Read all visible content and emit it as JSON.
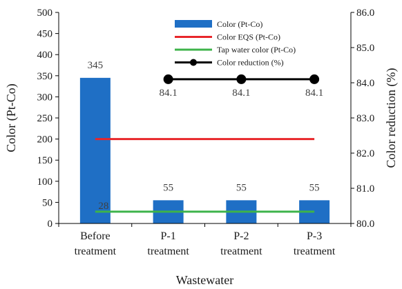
{
  "chart_data": {
    "type": "bar",
    "categories": [
      [
        "Before",
        "treatment"
      ],
      [
        "P-1",
        "treatment"
      ],
      [
        "P-2",
        "treatment"
      ],
      [
        "P-3",
        "treatment"
      ]
    ],
    "xlabel": "Wastewater",
    "ylabel": "Color (Pt-Co)",
    "y2label": "Color reduction (%)",
    "ylim": [
      0,
      500
    ],
    "yticks": [
      0,
      50,
      100,
      150,
      200,
      250,
      300,
      350,
      400,
      450,
      500
    ],
    "y2lim": [
      80.0,
      86.0
    ],
    "y2ticks": [
      "80.0",
      "81.0",
      "82.0",
      "83.0",
      "84.0",
      "85.0",
      "86.0"
    ],
    "grid": false,
    "legend_position": "top-right",
    "series": [
      {
        "name": "Color (Pt-Co)",
        "type": "bar",
        "axis": "left",
        "color": "#1f6fc5",
        "values": [
          345,
          55,
          55,
          55
        ],
        "labels": [
          "345",
          "55",
          "55",
          "55"
        ]
      },
      {
        "name": "Color EQS (Pt-Co)",
        "type": "line",
        "axis": "left",
        "color": "#e8262a",
        "values": [
          200,
          200,
          200,
          200
        ]
      },
      {
        "name": "Tap water color (Pt-Co)",
        "type": "line",
        "axis": "left",
        "color": "#3db34a",
        "values": [
          28,
          28,
          28,
          28
        ],
        "labels": [
          "28",
          null,
          null,
          null
        ]
      },
      {
        "name": "Color reduction (%)",
        "type": "line-marker",
        "axis": "right",
        "color": "#000000",
        "values": [
          null,
          84.1,
          84.1,
          84.1
        ],
        "labels": [
          null,
          "84.1",
          "84.1",
          "84.1"
        ]
      }
    ]
  }
}
